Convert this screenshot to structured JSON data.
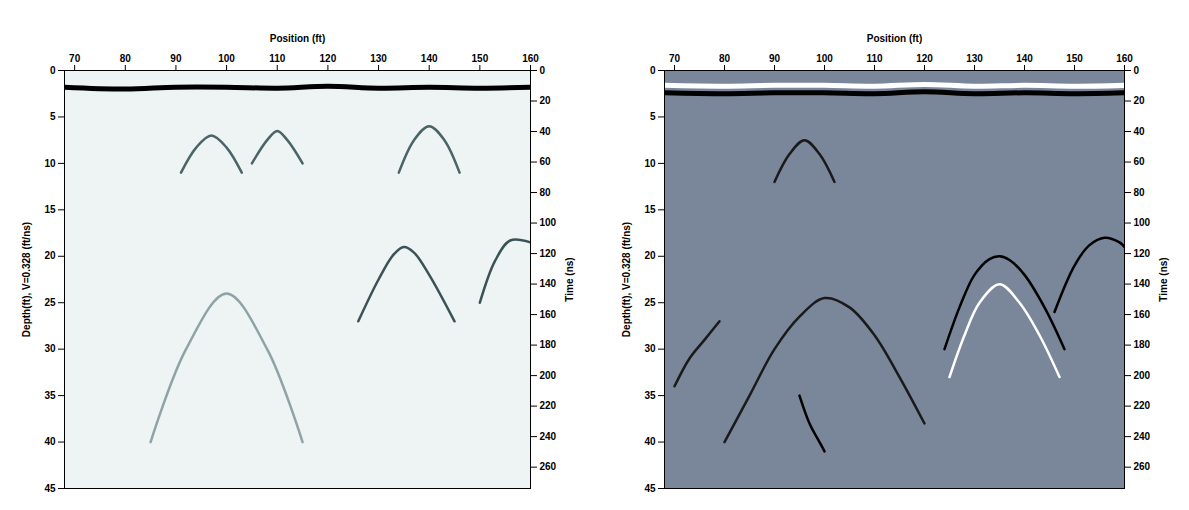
{
  "chart_data": [
    {
      "type": "line",
      "x_label": "Position (ft)",
      "y_label": "Depth(ft), V=0.328 (ft/ns)",
      "y2_label": "Time (ns)",
      "xlim": [
        68,
        160
      ],
      "xticks": [
        70,
        80,
        90,
        100,
        110,
        120,
        130,
        140,
        150,
        160
      ],
      "ylim": [
        0,
        45
      ],
      "yticks": [
        0,
        5,
        10,
        15,
        20,
        25,
        30,
        35,
        40,
        45
      ],
      "y2lim": [
        0,
        274
      ],
      "y2ticks": [
        0,
        20,
        40,
        60,
        80,
        100,
        120,
        140,
        160,
        180,
        200,
        220,
        240,
        260
      ],
      "series": [
        {
          "color": "#000000",
          "x": [
            68,
            80,
            90,
            100,
            110,
            120,
            130,
            140,
            150,
            160
          ],
          "values": [
            1.8,
            2.0,
            1.8,
            1.8,
            1.9,
            1.7,
            1.9,
            1.8,
            1.9,
            1.8
          ]
        },
        {
          "color": "#4a6468",
          "x": [
            91,
            94,
            97,
            100,
            103
          ],
          "values": [
            11,
            8.3,
            7,
            8.3,
            11
          ]
        },
        {
          "color": "#4a6468",
          "x": [
            105,
            108,
            110,
            112,
            115
          ],
          "values": [
            10,
            7.5,
            6.5,
            7.5,
            10
          ]
        },
        {
          "color": "#3b5357",
          "x": [
            126,
            130,
            133,
            135,
            137,
            140,
            145
          ],
          "values": [
            27,
            22.5,
            19.8,
            19,
            19.6,
            22,
            27
          ]
        },
        {
          "color": "#4a6468",
          "x": [
            134,
            137,
            140,
            143,
            146
          ],
          "values": [
            11,
            7.5,
            6,
            7.5,
            11
          ]
        },
        {
          "color": "#3b5357",
          "x": [
            150,
            153,
            156,
            160
          ],
          "values": [
            25,
            20.5,
            18.3,
            18.5
          ]
        },
        {
          "color": "#8fa3a6",
          "x": [
            85,
            92,
            100,
            108,
            115
          ],
          "values": [
            40,
            30,
            24,
            30,
            40
          ]
        }
      ]
    },
    {
      "type": "line",
      "x_label": "Position (ft)",
      "y_label": "Depth(ft), V=0.328 (ft/ns)",
      "y2_label": "Time (ns)",
      "xlim": [
        68,
        160
      ],
      "xticks": [
        70,
        80,
        90,
        100,
        110,
        120,
        130,
        140,
        150,
        160
      ],
      "ylim": [
        0,
        45
      ],
      "yticks": [
        0,
        5,
        10,
        15,
        20,
        25,
        30,
        35,
        40,
        45
      ],
      "y2lim": [
        0,
        274
      ],
      "y2ticks": [
        0,
        20,
        40,
        60,
        80,
        100,
        120,
        140,
        160,
        180,
        200,
        220,
        240,
        260
      ],
      "series": [
        {
          "color": "#ffffff",
          "x": [
            68,
            80,
            90,
            100,
            110,
            120,
            130,
            140,
            150,
            160
          ],
          "values": [
            1.6,
            1.7,
            1.6,
            1.6,
            1.7,
            1.5,
            1.7,
            1.6,
            1.7,
            1.6
          ]
        },
        {
          "color": "#000000",
          "x": [
            68,
            80,
            90,
            100,
            110,
            120,
            130,
            140,
            150,
            160
          ],
          "values": [
            2.4,
            2.5,
            2.4,
            2.4,
            2.5,
            2.3,
            2.5,
            2.4,
            2.5,
            2.4
          ]
        },
        {
          "color": "#1a1a1a",
          "x": [
            80,
            85,
            90,
            95,
            100,
            105,
            110,
            115,
            120
          ],
          "values": [
            40,
            35,
            30,
            26.5,
            24.5,
            25.5,
            28.5,
            33,
            38
          ]
        },
        {
          "color": "#000000",
          "x": [
            124,
            127,
            130,
            133,
            135,
            137,
            140,
            144,
            148
          ],
          "values": [
            30,
            25.5,
            22,
            20.3,
            20,
            20.4,
            22,
            25.5,
            30
          ]
        },
        {
          "color": "#ffffff",
          "x": [
            125,
            128,
            131,
            135,
            139,
            143,
            147
          ],
          "values": [
            33,
            28.5,
            25,
            23,
            25,
            28.5,
            33
          ]
        },
        {
          "color": "#000000",
          "x": [
            146,
            150,
            153,
            156,
            159,
            160
          ],
          "values": [
            26,
            21,
            18.8,
            18,
            18.5,
            19
          ]
        },
        {
          "color": "#1a1a1a",
          "x": [
            90,
            93,
            96,
            99,
            102
          ],
          "values": [
            12,
            9,
            7.5,
            9,
            12
          ]
        },
        {
          "color": "#1a1a1a",
          "x": [
            70,
            73,
            76,
            79
          ],
          "values": [
            34,
            31,
            29,
            27
          ]
        },
        {
          "color": "#000000",
          "x": [
            95,
            97,
            99,
            100
          ],
          "values": [
            35,
            38,
            40,
            41
          ]
        }
      ]
    }
  ]
}
